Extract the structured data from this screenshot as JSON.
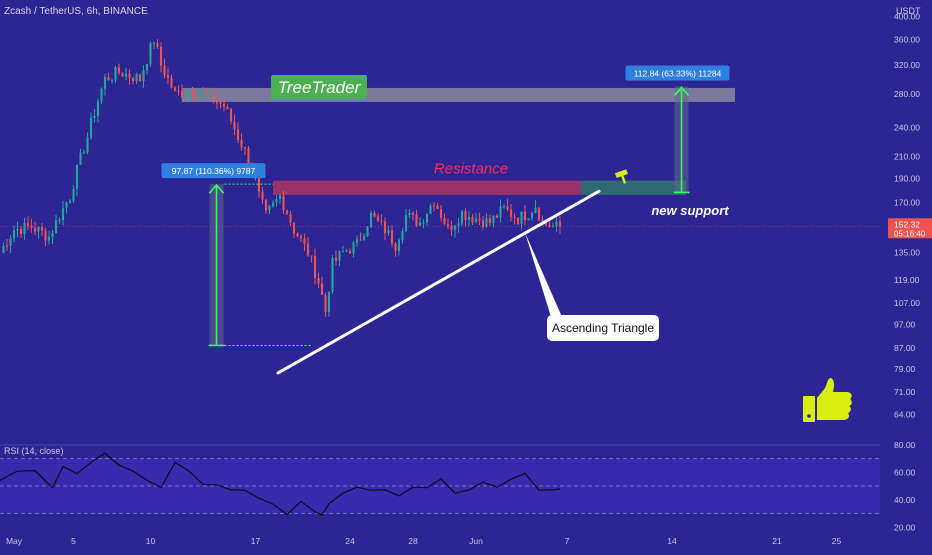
{
  "header": {
    "title": "Zcash / TetherUS, 6h, BINANCE",
    "currency": "USDT"
  },
  "colors": {
    "background": "#2d2593",
    "up": "#26a69a",
    "down": "#ef5350",
    "rsi_band": "#3b2ab0",
    "resistance": "#b3365f",
    "new_support": "#2f7a6b",
    "tree_zone": "#8a8aa0",
    "treetrader_badge": "#4caf50",
    "measure_label": "#2f7fe0",
    "price_tag": "#ef5350",
    "thumb": "#d7ee0e"
  },
  "chart_data": [
    {
      "type": "candlestick",
      "title": "Zcash / TetherUS, 6h, BINANCE",
      "xaxis_ticks": [
        "May",
        "5",
        "10",
        "17",
        "24",
        "28",
        "Jun",
        "7",
        "14",
        "21",
        "25"
      ],
      "yaxis_ticks": [
        "400.00",
        "360.00",
        "320.00",
        "280.00",
        "240.00",
        "210.00",
        "190.00",
        "170.00",
        "152.32",
        "135.00",
        "119.00",
        "107.00",
        "97.00",
        "87.00",
        "79.00",
        "71.00",
        "64.00"
      ],
      "ylim": [
        58,
        420
      ],
      "scale": "log",
      "grid": false,
      "current_price": "152.32",
      "countdown": "05:16:40",
      "trend": [
        {
          "x": 0,
          "c": 135
        },
        {
          "x": 4,
          "c": 150
        },
        {
          "x": 9,
          "c": 152
        },
        {
          "x": 14,
          "c": 145
        },
        {
          "x": 20,
          "c": 175
        },
        {
          "x": 25,
          "c": 230
        },
        {
          "x": 30,
          "c": 300
        },
        {
          "x": 34,
          "c": 310
        },
        {
          "x": 40,
          "c": 300
        },
        {
          "x": 44,
          "c": 360
        },
        {
          "x": 46,
          "c": 320
        },
        {
          "x": 50,
          "c": 280
        },
        {
          "x": 55,
          "c": 285
        },
        {
          "x": 60,
          "c": 275
        },
        {
          "x": 64,
          "c": 265
        },
        {
          "x": 68,
          "c": 230
        },
        {
          "x": 72,
          "c": 200
        },
        {
          "x": 74,
          "c": 175
        },
        {
          "x": 76,
          "c": 160
        },
        {
          "x": 80,
          "c": 175
        },
        {
          "x": 84,
          "c": 150
        },
        {
          "x": 88,
          "c": 135
        },
        {
          "x": 91,
          "c": 118
        },
        {
          "x": 93,
          "c": 103
        },
        {
          "x": 95,
          "c": 128
        },
        {
          "x": 98,
          "c": 135
        },
        {
          "x": 102,
          "c": 140
        },
        {
          "x": 106,
          "c": 160
        },
        {
          "x": 110,
          "c": 150
        },
        {
          "x": 113,
          "c": 140
        },
        {
          "x": 116,
          "c": 160
        },
        {
          "x": 120,
          "c": 155
        },
        {
          "x": 124,
          "c": 172
        },
        {
          "x": 128,
          "c": 150
        },
        {
          "x": 132,
          "c": 162
        },
        {
          "x": 136,
          "c": 158
        },
        {
          "x": 140,
          "c": 155
        },
        {
          "x": 144,
          "c": 165
        },
        {
          "x": 148,
          "c": 158
        },
        {
          "x": 151,
          "c": 162
        },
        {
          "x": 153,
          "c": 168
        },
        {
          "x": 155,
          "c": 155
        },
        {
          "x": 158,
          "c": 152
        },
        {
          "x": 160,
          "c": 152
        }
      ],
      "annotations": [
        {
          "label": "TreeTrader",
          "kind": "zone",
          "x_from": 52,
          "x_to": 210,
          "y_from": 270,
          "y_to": 288
        },
        {
          "label": "Resistance",
          "kind": "zone",
          "x_from": 78,
          "x_to": 166,
          "y_from": 176,
          "y_to": 188
        },
        {
          "label": "new support",
          "kind": "zone",
          "x_from": 166,
          "x_to": 196,
          "y_from": 176,
          "y_to": 188
        },
        {
          "label": "Ascending Triangle",
          "kind": "trendline",
          "from": {
            "x": 76,
            "y": 79
          },
          "to": {
            "x": 166,
            "y": 184
          }
        },
        {
          "label": "97.87 (110.36%) 9787",
          "kind": "measure",
          "x": 59,
          "from": 88,
          "to": 185
        },
        {
          "label": "112.84 (63.33%) 11284",
          "kind": "measure",
          "x": 193,
          "from": 178,
          "to": 290
        }
      ],
      "icons": [
        "hammer-icon",
        "thumbs-up-icon"
      ]
    },
    {
      "type": "line",
      "title": "RSI (14, close)",
      "yaxis_ticks": [
        "80.00",
        "60.00",
        "40.00",
        "20.00"
      ],
      "ylim": [
        18,
        82
      ],
      "grid": false,
      "bands": [
        70,
        50,
        30
      ],
      "x": [
        0,
        5,
        10,
        15,
        18,
        22,
        26,
        30,
        34,
        38,
        42,
        46,
        50,
        54,
        58,
        62,
        66,
        70,
        74,
        78,
        82,
        86,
        90,
        92,
        94,
        98,
        102,
        106,
        110,
        114,
        118,
        122,
        126,
        130,
        134,
        138,
        142,
        146,
        150,
        154,
        158,
        160
      ],
      "values": [
        55,
        60,
        62,
        48,
        65,
        58,
        68,
        73,
        66,
        60,
        55,
        48,
        68,
        60,
        52,
        50,
        48,
        46,
        42,
        36,
        30,
        38,
        32,
        28,
        38,
        44,
        50,
        46,
        48,
        42,
        50,
        48,
        56,
        44,
        48,
        52,
        50,
        54,
        60,
        46,
        48,
        47
      ]
    }
  ]
}
